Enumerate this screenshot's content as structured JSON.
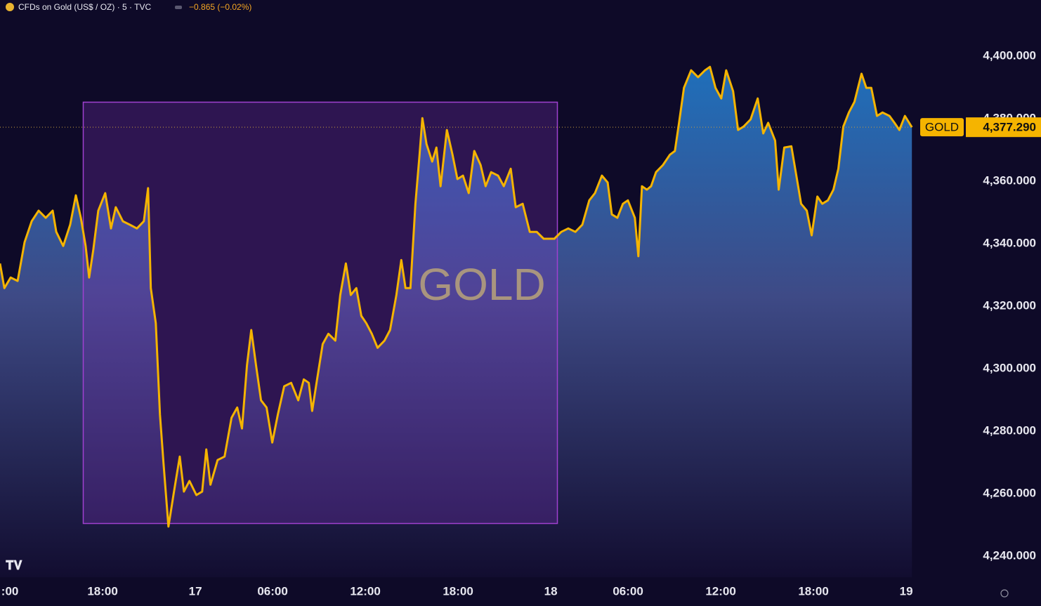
{
  "chart_data": {
    "type": "area",
    "title": "CFDs on Gold (US$ / OZ) · 5 · TVC",
    "subtitle": "−0.865 (−0.02%)",
    "annotation": "GOLD",
    "grid": false,
    "xlim": [
      -0.64,
      58.45
    ],
    "ylim": [
      4233.3,
      4418.0
    ],
    "xticks": [
      {
        "value": 0,
        "label": ":00"
      },
      {
        "value": 6,
        "label": "18:00"
      },
      {
        "value": 12,
        "label": "17"
      },
      {
        "value": 17,
        "label": "06:00"
      },
      {
        "value": 23,
        "label": "12:00"
      },
      {
        "value": 29,
        "label": "18:00"
      },
      {
        "value": 35,
        "label": "18"
      },
      {
        "value": 40,
        "label": "06:00"
      },
      {
        "value": 46,
        "label": "12:00"
      },
      {
        "value": 52,
        "label": "18:00"
      },
      {
        "value": 58,
        "label": "19"
      }
    ],
    "yticks": [
      {
        "value": 4240,
        "label": "4,240.000"
      },
      {
        "value": 4260,
        "label": "4,260.000"
      },
      {
        "value": 4280,
        "label": "4,280.000"
      },
      {
        "value": 4300,
        "label": "4,300.000"
      },
      {
        "value": 4320,
        "label": "4,320.000"
      },
      {
        "value": 4340,
        "label": "4,340.000"
      },
      {
        "value": 4360,
        "label": "4,360.000"
      },
      {
        "value": 4380,
        "label": "4,380.000"
      },
      {
        "value": 4400,
        "label": "4,400.000"
      }
    ],
    "last_price": {
      "value": 4377.29,
      "label": "4,377.290"
    },
    "series": [
      {
        "name": "GOLD",
        "color": "#f5b400",
        "x": [
          -0.64,
          -0.36,
          0.05,
          0.5,
          0.95,
          1.41,
          1.86,
          2.32,
          2.77,
          3.0,
          3.45,
          3.9,
          4.27,
          4.59,
          4.9,
          5.13,
          5.4,
          5.72,
          6.17,
          6.54,
          6.85,
          7.31,
          7.76,
          8.22,
          8.67,
          8.94,
          9.12,
          9.44,
          9.71,
          9.94,
          10.26,
          10.62,
          10.99,
          11.26,
          11.62,
          12.07,
          12.44,
          12.71,
          12.98,
          13.44,
          13.89,
          14.34,
          14.71,
          15.02,
          15.34,
          15.62,
          15.93,
          16.25,
          16.61,
          16.98,
          17.34,
          17.75,
          18.2,
          18.66,
          19.02,
          19.34,
          19.56,
          19.88,
          20.24,
          20.61,
          21.06,
          21.38,
          21.74,
          22.06,
          22.42,
          22.74,
          23.06,
          23.42,
          23.79,
          24.24,
          24.6,
          25.01,
          25.33,
          25.6,
          25.92,
          26.24,
          26.51,
          26.69,
          26.96,
          27.33,
          27.6,
          27.87,
          28.28,
          28.64,
          28.96,
          29.32,
          29.69,
          30.05,
          30.46,
          30.78,
          31.14,
          31.59,
          31.96,
          32.41,
          32.73,
          33.18,
          33.64,
          34.09,
          34.54,
          35.23,
          35.68,
          36.13,
          36.59,
          37.04,
          37.49,
          37.86,
          38.31,
          38.68,
          38.95,
          39.31,
          39.67,
          39.99,
          40.44,
          40.67,
          40.9,
          41.22,
          41.49,
          41.81,
          42.26,
          42.71,
          43.03,
          43.3,
          43.62,
          44.08,
          44.53,
          44.98,
          45.3,
          45.66,
          46.03,
          46.35,
          46.8,
          47.12,
          47.48,
          47.93,
          48.39,
          48.75,
          49.07,
          49.52,
          49.75,
          50.11,
          50.57,
          50.89,
          51.2,
          51.57,
          51.88,
          52.25,
          52.57,
          52.93,
          53.29,
          53.61,
          53.93,
          54.29,
          54.65,
          55.11,
          55.42,
          55.74,
          56.11,
          56.47,
          56.92,
          57.24,
          57.56,
          57.92,
          58.37
        ],
        "values": [
          4333.7,
          4325.8,
          4329.2,
          4328.1,
          4340.5,
          4347.2,
          4350.6,
          4348.3,
          4350.6,
          4343.8,
          4339.3,
          4346.1,
          4355.5,
          4348.3,
          4339.3,
          4329.2,
          4338.2,
          4350.6,
          4356.2,
          4344.9,
          4351.7,
          4347.2,
          4346.1,
          4344.9,
          4347.2,
          4357.8,
          4325.8,
          4314.6,
          4285.4,
          4269.7,
          4249.5,
          4260.7,
          4271.9,
          4260.7,
          4264.1,
          4259.6,
          4260.7,
          4274.2,
          4262.9,
          4270.8,
          4271.9,
          4284.3,
          4287.6,
          4280.9,
          4301.1,
          4312.4,
          4301.1,
          4289.9,
          4287.6,
          4276.4,
          4285.4,
          4294.4,
          4295.5,
          4289.9,
          4296.6,
          4295.5,
          4286.5,
          4296.6,
          4307.9,
          4311.2,
          4309.0,
          4323.6,
          4333.7,
          4323.6,
          4325.8,
          4316.9,
          4314.6,
          4311.2,
          4306.7,
          4309.0,
          4312.4,
          4323.6,
          4334.8,
          4325.8,
          4325.8,
          4352.8,
          4368.5,
          4380.2,
          4371.9,
          4366.3,
          4370.8,
          4358.4,
          4376.4,
          4368.5,
          4360.7,
          4361.8,
          4356.2,
          4369.7,
          4365.2,
          4358.4,
          4362.9,
          4361.8,
          4358.4,
          4364.0,
          4351.7,
          4352.8,
          4343.8,
          4343.8,
          4341.6,
          4341.6,
          4343.8,
          4344.9,
          4343.8,
          4346.1,
          4353.9,
          4356.2,
          4361.8,
          4359.6,
          4349.4,
          4348.3,
          4352.8,
          4353.9,
          4348.3,
          4336.0,
          4358.4,
          4357.3,
          4358.4,
          4362.9,
          4365.2,
          4368.5,
          4369.7,
          4378.7,
          4389.9,
          4395.5,
          4393.3,
          4395.5,
          4396.6,
          4389.9,
          4386.5,
          4395.5,
          4388.8,
          4376.4,
          4377.5,
          4379.8,
          4386.5,
          4375.3,
          4378.7,
          4373.0,
          4357.3,
          4370.8,
          4371.2,
          4361.8,
          4352.8,
          4350.6,
          4342.7,
          4355.1,
          4352.8,
          4353.9,
          4357.3,
          4364.0,
          4377.5,
          4382.0,
          4385.4,
          4394.4,
          4389.9,
          4389.9,
          4380.9,
          4382.0,
          4380.9,
          4378.7,
          4376.4,
          4380.9,
          4377.29
        ]
      }
    ]
  }
}
